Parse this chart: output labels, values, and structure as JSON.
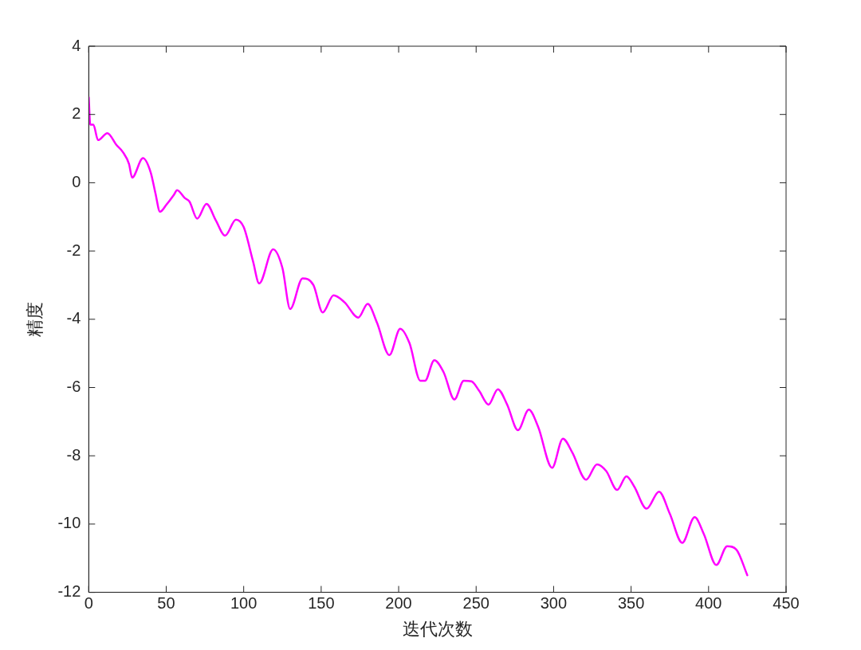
{
  "chart_data": {
    "type": "line",
    "xlabel": "迭代次数",
    "ylabel": "精度",
    "xlim": [
      0,
      450
    ],
    "xticks": [
      0,
      50,
      100,
      150,
      200,
      250,
      300,
      350,
      400,
      450
    ],
    "ylim": [
      -12,
      4
    ],
    "yticks": [
      -12,
      -10,
      -8,
      -6,
      -4,
      -2,
      0,
      2,
      4
    ],
    "grid": false,
    "legend": false,
    "marker": "none",
    "line_style": "solid",
    "series": [
      {
        "color": "#ff00ff",
        "x": [
          0,
          1,
          3,
          6,
          12,
          18,
          22,
          26,
          28,
          35,
          40,
          43,
          46,
          50,
          55,
          57,
          62,
          65,
          70,
          76,
          82,
          88,
          95,
          100,
          106,
          110,
          119,
          125,
          130,
          138,
          145,
          151,
          158,
          165,
          174,
          180,
          186,
          194,
          201,
          207,
          214,
          217,
          223,
          229,
          236,
          242,
          247,
          252,
          258,
          264,
          270,
          277,
          284,
          290,
          299,
          306,
          312,
          321,
          328,
          334,
          341,
          347,
          352,
          360,
          368,
          375,
          383,
          391,
          397,
          405,
          412,
          418,
          425
        ],
        "values": [
          2.5,
          1.7,
          1.7,
          1.25,
          1.45,
          1.1,
          0.9,
          0.55,
          0.15,
          0.72,
          0.3,
          -0.3,
          -0.85,
          -0.65,
          -0.35,
          -0.22,
          -0.45,
          -0.55,
          -1.05,
          -0.62,
          -1.1,
          -1.55,
          -1.08,
          -1.3,
          -2.3,
          -2.95,
          -1.95,
          -2.5,
          -3.7,
          -2.8,
          -3.0,
          -3.8,
          -3.3,
          -3.5,
          -3.95,
          -3.55,
          -4.1,
          -5.05,
          -4.28,
          -4.7,
          -5.8,
          -5.8,
          -5.2,
          -5.55,
          -6.35,
          -5.8,
          -5.82,
          -6.1,
          -6.5,
          -6.05,
          -6.5,
          -7.25,
          -6.65,
          -7.15,
          -8.35,
          -7.5,
          -7.9,
          -8.7,
          -8.25,
          -8.45,
          -9.0,
          -8.6,
          -8.9,
          -9.55,
          -9.05,
          -9.7,
          -10.55,
          -9.8,
          -10.3,
          -11.2,
          -10.65,
          -10.75,
          -11.5
        ]
      }
    ]
  }
}
